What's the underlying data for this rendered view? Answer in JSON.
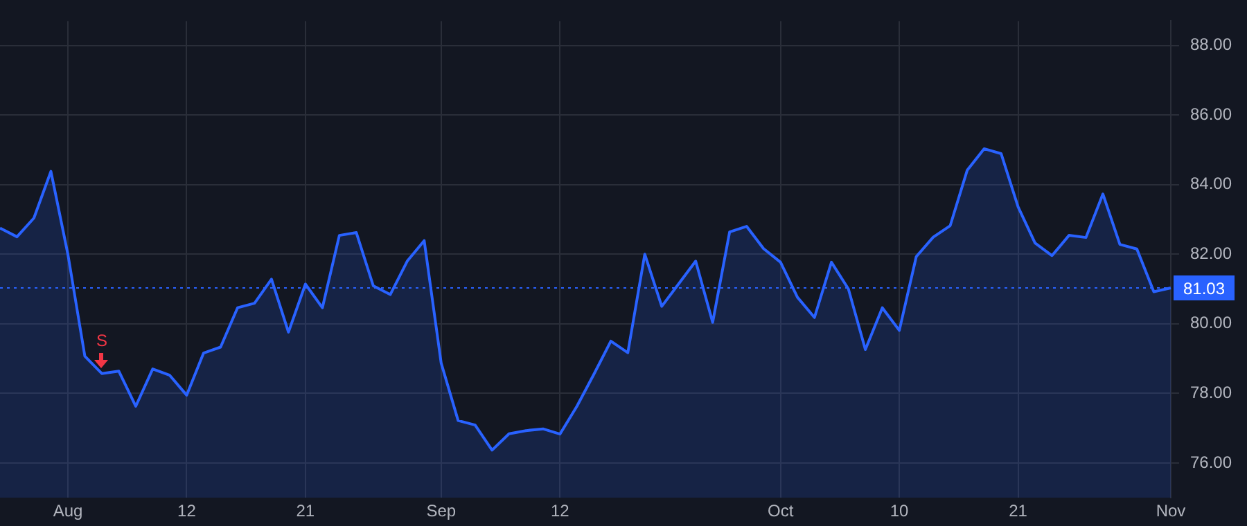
{
  "chart_data": {
    "type": "area",
    "categories": [
      null,
      null,
      null,
      null,
      "Aug",
      null,
      null,
      null,
      null,
      null,
      null,
      "12",
      null,
      null,
      null,
      null,
      null,
      null,
      "21",
      null,
      null,
      null,
      null,
      null,
      null,
      null,
      "Sep",
      null,
      null,
      null,
      null,
      null,
      null,
      "12",
      null,
      null,
      null,
      null,
      null,
      null,
      null,
      null,
      null,
      null,
      null,
      null,
      "Oct",
      null,
      null,
      null,
      null,
      null,
      null,
      "10",
      null,
      null,
      null,
      null,
      null,
      null,
      "21",
      null,
      null,
      null,
      null,
      null,
      null,
      null,
      null,
      "Nov"
    ],
    "series": [
      {
        "color": "#2962ff",
        "values": [
          82.75,
          82.5,
          83.04,
          84.38,
          82.0,
          79.07,
          78.57,
          78.64,
          77.63,
          78.7,
          78.52,
          77.95,
          79.16,
          79.33,
          80.46,
          80.59,
          81.28,
          79.76,
          81.14,
          80.46,
          82.54,
          82.62,
          81.09,
          80.84,
          81.8,
          82.39,
          78.87,
          77.22,
          77.09,
          76.37,
          76.84,
          76.93,
          76.98,
          76.83,
          77.63,
          78.55,
          79.5,
          79.17,
          82.0,
          80.5,
          81.15,
          81.8,
          80.04,
          82.64,
          82.8,
          82.16,
          81.77,
          80.76,
          80.18,
          81.77,
          81.0,
          79.26,
          80.46,
          79.81,
          81.93,
          82.49,
          82.82,
          84.41,
          85.03,
          84.89,
          83.36,
          82.32,
          81.96,
          82.54,
          82.48,
          83.73,
          82.28,
          82.15,
          80.92,
          81.03
        ]
      }
    ],
    "ylim": [
      75,
      88.7
    ],
    "yticks": [
      {
        "value": 76,
        "label": "76.00"
      },
      {
        "value": 78,
        "label": "78.00"
      },
      {
        "value": 80,
        "label": "80.00"
      },
      {
        "value": 82,
        "label": "82.00"
      },
      {
        "value": 84,
        "label": "84.00"
      },
      {
        "value": 86,
        "label": "86.00"
      },
      {
        "value": 88,
        "label": "88.00"
      }
    ],
    "ref_lines": [
      {
        "axis": "y",
        "value": 81.03,
        "label": "81.03",
        "color": "#2962ff",
        "line_style": "dotted"
      }
    ],
    "annotations": [
      {
        "text": "S",
        "y": 78.57
      }
    ],
    "grid": true,
    "legend": false,
    "marker": "none",
    "line_style": "solid"
  }
}
